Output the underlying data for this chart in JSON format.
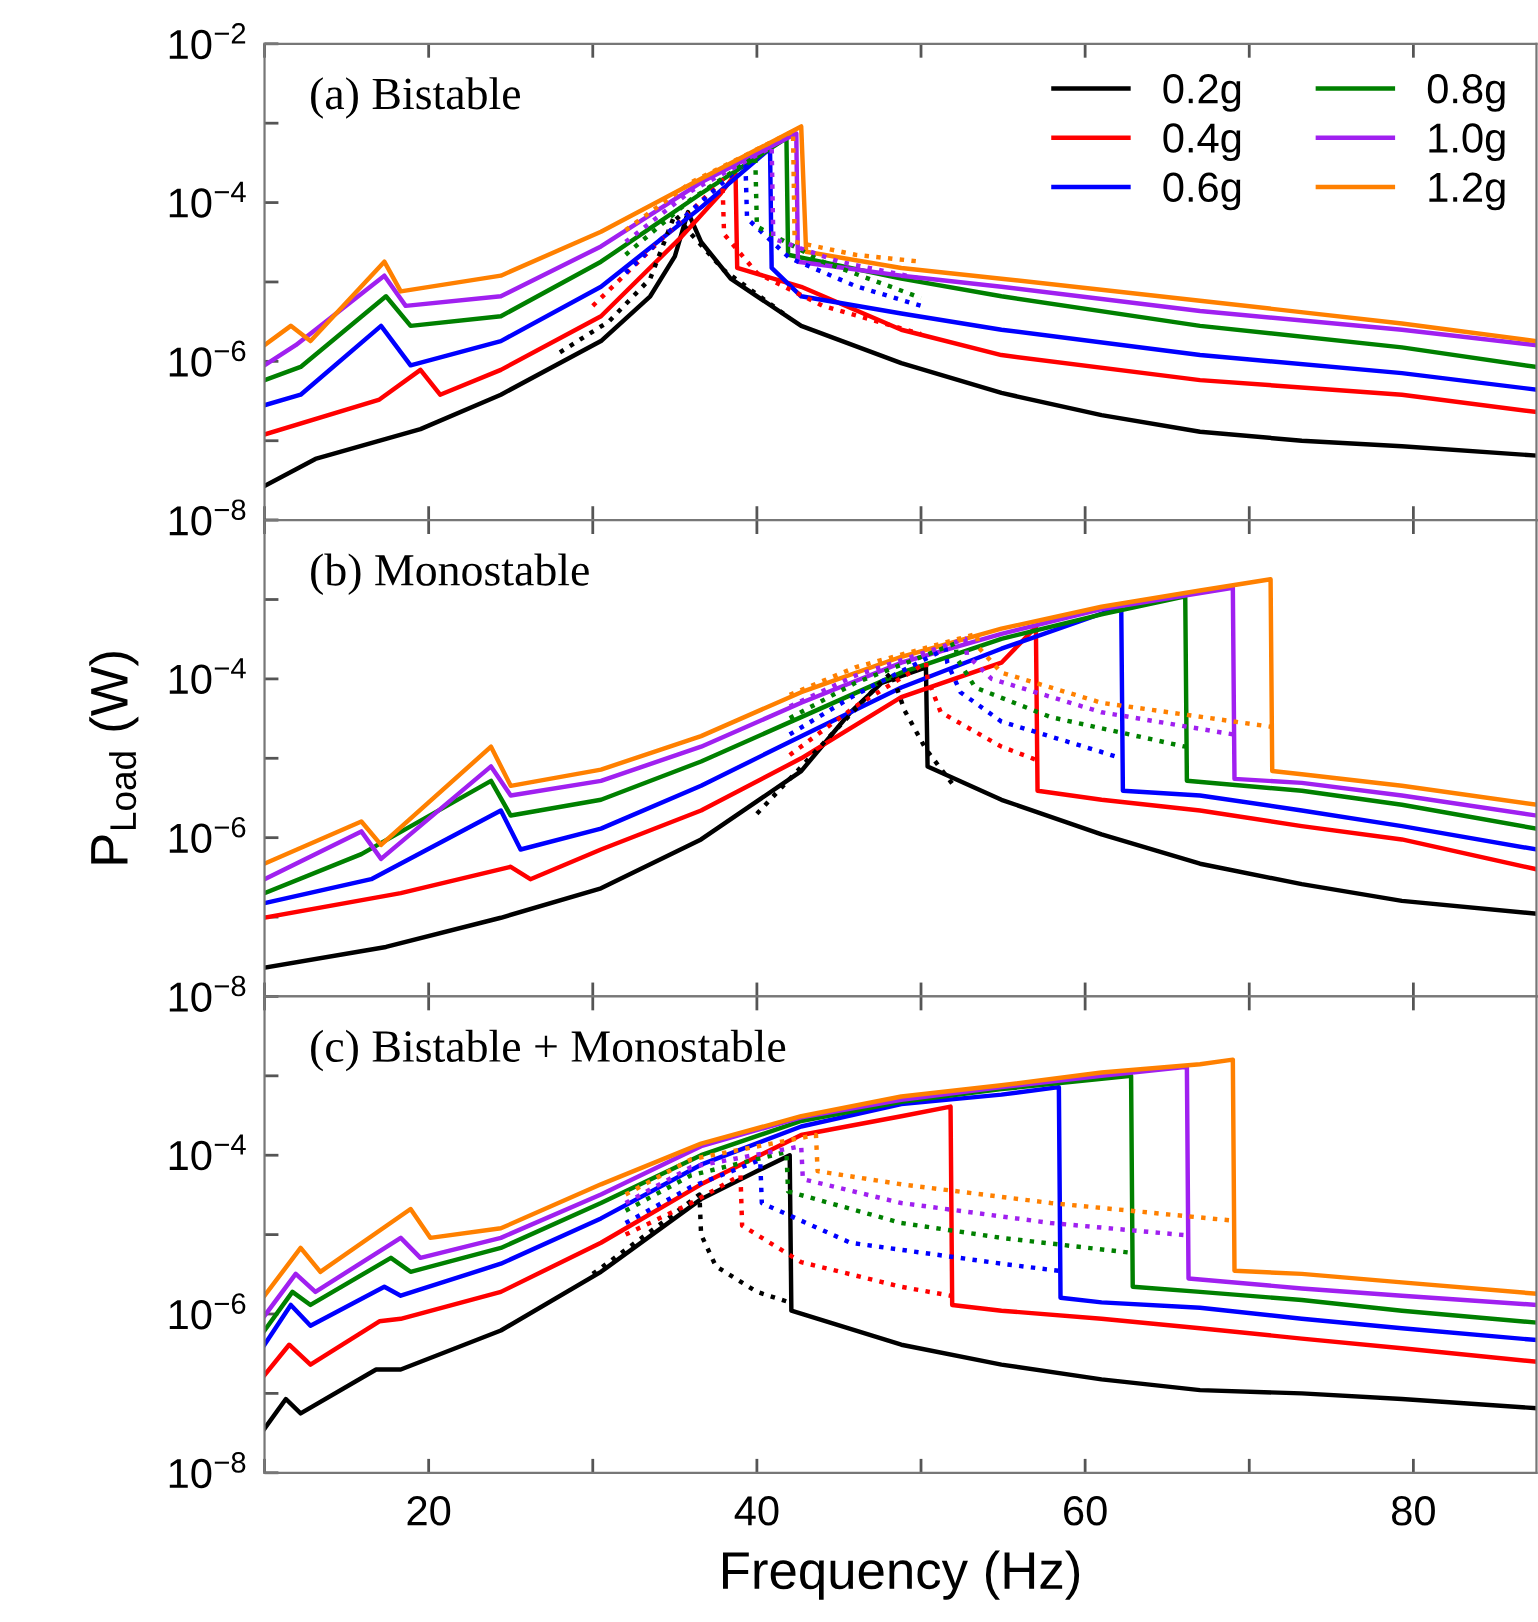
{
  "chart_data": [
    {
      "type": "line",
      "title": "(a) Bistable",
      "legend": "top right",
      "log": "y",
      "xlim": [
        10,
        87.5
      ],
      "ylim": [
        1e-08,
        0.01
      ],
      "tick_labels": "y",
      "xticks": [
        {
          "value": 10,
          "label": null
        },
        {
          "value": 20,
          "label": null
        },
        {
          "value": 30,
          "label": null
        },
        {
          "value": 40,
          "label": null
        },
        {
          "value": 50,
          "label": null
        },
        {
          "value": 60,
          "label": null
        },
        {
          "value": 70,
          "label": null
        },
        {
          "value": 80,
          "label": null
        }
      ],
      "yticks": [
        {
          "value": 1e-08,
          "label": "10$^{−8}$"
        },
        {
          "value": 1e-07,
          "label": null
        },
        {
          "value": 1e-06,
          "label": "10$^{−6}$"
        },
        {
          "value": 1e-05,
          "label": null
        },
        {
          "value": 0.0001,
          "label": "10$^{−4}$"
        },
        {
          "value": 0.001,
          "label": null
        },
        {
          "value": 0.01,
          "label": "10$^{−2}$"
        }
      ],
      "series": [
        {
          "name": "0.2g",
          "color": "#000000",
          "line_style": "solid",
          "x": [
            10,
            13.1,
            19.5,
            24.4,
            30.5,
            33.5,
            35,
            35.8,
            36.6,
            38.4,
            42.7,
            48.8,
            54.9,
            61,
            67,
            73.2,
            79.3,
            87.5
          ],
          "values": [
            2.7e-08,
            5.9e-08,
            1.4e-07,
            3.8e-07,
            1.8e-06,
            6.6e-06,
            2.1e-05,
            7.6e-05,
            3.2e-05,
            1.1e-05,
            2.8e-06,
            9.5e-07,
            4e-07,
            2.1e-07,
            1.3e-07,
            1e-07,
            8.5e-08,
            6.5e-08
          ]
        },
        {
          "name": "0.4g",
          "color": "#ff0000",
          "line_style": "solid",
          "x": [
            10,
            17,
            19.5,
            20.7,
            24.4,
            30.5,
            35.4,
            37.8,
            38.7,
            38.8,
            42.7,
            48.8,
            54.9,
            67,
            79.3,
            87.5
          ],
          "values": [
            1.2e-07,
            3.3e-07,
            7.8e-07,
            3.8e-07,
            7.8e-07,
            3.7e-06,
            3.7e-05,
            0.00013,
            0.00023,
            1.5e-05,
            8.7e-06,
            2.5e-06,
            1.2e-06,
            5.8e-07,
            3.8e-07,
            2.3e-07
          ]
        },
        {
          "name": "0.6g",
          "color": "#0000ff",
          "line_style": "solid",
          "x": [
            10,
            12.2,
            17.1,
            18.9,
            24.4,
            30.5,
            36.6,
            40.8,
            40.9,
            42.7,
            48.8,
            54.9,
            67,
            79.3,
            87.5
          ],
          "values": [
            2.8e-07,
            3.8e-07,
            2.8e-06,
            8.9e-07,
            1.8e-06,
            8.7e-06,
            8.7e-05,
            0.00048,
            1.5e-05,
            6.6e-06,
            4e-06,
            2.5e-06,
            1.2e-06,
            7.1e-07,
            4.4e-07
          ]
        },
        {
          "name": "0.8g",
          "color": "#008000",
          "line_style": "solid",
          "x": [
            10,
            12.2,
            17.4,
            18.9,
            24.4,
            30.5,
            36.6,
            41.8,
            41.9,
            48.8,
            54.9,
            67,
            79.3,
            87.5
          ],
          "values": [
            5.8e-07,
            8.5e-07,
            6.6e-06,
            2.8e-06,
            3.7e-06,
            1.8e-05,
            0.00013,
            0.00065,
            2.2e-05,
            1.1e-05,
            6.6e-06,
            2.8e-06,
            1.5e-06,
            8.5e-07
          ]
        },
        {
          "name": "1.0g",
          "color": "#a020f0",
          "line_style": "solid",
          "x": [
            10,
            11.9,
            17.3,
            18.6,
            24.4,
            30.5,
            36.6,
            42.4,
            42.5,
            48.8,
            54.9,
            67,
            79.3,
            87.5
          ],
          "values": [
            8.9e-07,
            1.6e-06,
            1.2e-05,
            5e-06,
            6.6e-06,
            2.8e-05,
            0.00018,
            0.00074,
            1.8e-05,
            1.2e-05,
            8.7e-06,
            4.3e-06,
            2.5e-06,
            1.6e-06
          ]
        },
        {
          "name": "1.2g",
          "color": "#ff8000",
          "line_style": "solid",
          "x": [
            10,
            11.6,
            12.8,
            17.3,
            18.3,
            24.4,
            30.5,
            36.6,
            42.7,
            43.0,
            48.8,
            54.9,
            67,
            79.3,
            87.5
          ],
          "values": [
            1.6e-06,
            2.8e-06,
            1.8e-06,
            1.8e-05,
            7.6e-06,
            1.2e-05,
            4.3e-05,
            0.0002,
            0.00091,
            2.4e-05,
            1.5e-05,
            1.1e-05,
            5.8e-06,
            3e-06,
            1.8e-06
          ]
        },
        {
          "color": "#000000",
          "line_style": "dotted",
          "x": [
            28,
            31,
            33.5,
            35.0,
            36,
            38,
            42
          ],
          "values": [
            1.3e-06,
            3.2e-06,
            1.1e-05,
            7.1e-05,
            4e-05,
            1.4e-05,
            3.5e-06
          ]
        },
        {
          "color": "#ff0000",
          "line_style": "dotted",
          "x": [
            30,
            35,
            37.9,
            38.0,
            40,
            44,
            50
          ],
          "values": [
            5e-06,
            5e-05,
            0.00019,
            4e-05,
            1.3e-05,
            5e-06,
            2.2e-06
          ]
        },
        {
          "color": "#0000ff",
          "line_style": "dotted",
          "x": [
            32,
            36,
            39.3,
            39.4,
            42,
            46,
            50
          ],
          "values": [
            1.3e-05,
            7.9e-05,
            0.00032,
            6.3e-05,
            2e-05,
            8.9e-06,
            5e-06
          ]
        },
        {
          "color": "#008000",
          "line_style": "dotted",
          "x": [
            32,
            36,
            39.9,
            40.0,
            44,
            50
          ],
          "values": [
            2.2e-05,
            0.00011,
            0.00038,
            5e-05,
            1.8e-05,
            6.3e-06
          ]
        },
        {
          "color": "#a020f0",
          "line_style": "dotted",
          "x": [
            32,
            36,
            40.9,
            41.0,
            45,
            50
          ],
          "values": [
            3.2e-05,
            0.00014,
            0.0005,
            3.5e-05,
            1.8e-05,
            1.1e-05
          ]
        },
        {
          "color": "#ff8000",
          "line_style": "dotted",
          "x": [
            32,
            36,
            42.2,
            42.3,
            46,
            50
          ],
          "values": [
            4.5e-05,
            0.00018,
            0.00079,
            3.2e-05,
            2.2e-05,
            1.8e-05
          ]
        }
      ]
    },
    {
      "type": "line",
      "title": "(b) Monostable",
      "ylabel": "P$_{Load}$ (W)",
      "log": "y",
      "xlim": [
        10,
        87.5
      ],
      "ylim": [
        1e-08,
        0.01
      ],
      "tick_labels": "y",
      "xticks": [
        {
          "value": 10,
          "label": null
        },
        {
          "value": 20,
          "label": null
        },
        {
          "value": 30,
          "label": null
        },
        {
          "value": 40,
          "label": null
        },
        {
          "value": 50,
          "label": null
        },
        {
          "value": 60,
          "label": null
        },
        {
          "value": 70,
          "label": null
        },
        {
          "value": 80,
          "label": null
        }
      ],
      "yticks": [
        {
          "value": 1e-08,
          "label": "10$^{−8}$"
        },
        {
          "value": 1e-07,
          "label": null
        },
        {
          "value": 1e-06,
          "label": "10$^{−6}$"
        },
        {
          "value": 1e-05,
          "label": null
        },
        {
          "value": 0.0001,
          "label": "10$^{−4}$"
        },
        {
          "value": 0.001,
          "label": null
        },
        {
          "value": 0.01,
          "label": null
        }
      ],
      "series": [
        {
          "color": "#000000",
          "line_style": "solid",
          "x": [
            10,
            17.4,
            24.4,
            30.5,
            36.6,
            42.7,
            45.7,
            47.6,
            50.3,
            50.4,
            54.9,
            61,
            67,
            73.2,
            79.3,
            87.5
          ],
          "values": [
            2.3e-08,
            4.2e-08,
            9.8e-08,
            2.3e-07,
            9.5e-07,
            6.9e-06,
            3.8e-05,
            8.9e-05,
            0.00014,
            7.9e-06,
            3e-06,
            1.1e-06,
            4.7e-07,
            2.6e-07,
            1.6e-07,
            1.1e-07
          ]
        },
        {
          "color": "#ff0000",
          "line_style": "solid",
          "x": [
            10,
            18.3,
            25,
            26.2,
            30.5,
            36.6,
            42.7,
            48.8,
            54.9,
            57,
            57.1,
            61,
            67,
            73.2,
            79.3,
            87.5
          ],
          "values": [
            9.8e-08,
            2e-07,
            4.3e-07,
            3e-07,
            7.1e-07,
            2.2e-06,
            1e-05,
            5.9e-05,
            0.00016,
            0.00045,
            3.9e-06,
            3e-06,
            2.2e-06,
            1.4e-06,
            9.5e-07,
            4e-07
          ]
        },
        {
          "color": "#0000ff",
          "line_style": "solid",
          "x": [
            10,
            16.5,
            24.4,
            25.6,
            30.5,
            36.6,
            42.7,
            48.8,
            54.9,
            62.2,
            62.3,
            67,
            73.2,
            79.3,
            87.5
          ],
          "values": [
            1.5e-07,
            3e-07,
            2.2e-06,
            7.1e-07,
            1.3e-06,
            4.5e-06,
            1.9e-05,
            7.8e-05,
            0.00024,
            0.00081,
            3.9e-06,
            3.4e-06,
            2.2e-06,
            1.4e-06,
            7.1e-07
          ]
        },
        {
          "color": "#008000",
          "line_style": "solid",
          "x": [
            10,
            15.9,
            23.8,
            25,
            30.5,
            36.6,
            42.7,
            48.8,
            54.9,
            61,
            66.1,
            66.2,
            73.2,
            79.3,
            87.5
          ],
          "values": [
            2e-07,
            6.2e-07,
            5.2e-06,
            1.9e-06,
            3e-06,
            9.1e-06,
            3.3e-05,
            0.00012,
            0.00032,
            0.00065,
            0.0011,
            5.2e-06,
            3.9e-06,
            2.6e-06,
            1.3e-06
          ]
        },
        {
          "color": "#a020f0",
          "line_style": "solid",
          "x": [
            10,
            15.9,
            17.1,
            23.8,
            25,
            30.5,
            36.6,
            42.7,
            48.8,
            54.9,
            61,
            69,
            69.1,
            73.2,
            79.3,
            87.5
          ],
          "values": [
            3e-07,
            1.2e-06,
            5.4e-07,
            7.9e-06,
            3.4e-06,
            5.2e-06,
            1.4e-05,
            5e-05,
            0.00016,
            0.00037,
            0.00076,
            0.0014,
            5.5e-06,
            4.9e-06,
            3.4e-06,
            1.9e-06
          ]
        },
        {
          "color": "#ff8000",
          "line_style": "solid",
          "x": [
            10,
            15.9,
            17.1,
            23.8,
            25,
            30.5,
            36.6,
            42.7,
            48.8,
            54.9,
            61,
            67,
            71.3,
            71.4,
            73.2,
            79.3,
            87.5
          ],
          "values": [
            4.7e-07,
            1.6e-06,
            8.1e-07,
            1.4e-05,
            4.5e-06,
            7.2e-06,
            1.9e-05,
            6.8e-05,
            0.00019,
            0.00043,
            0.00081,
            0.0013,
            0.0018,
            6.9e-06,
            6.3e-06,
            4.5e-06,
            2.6e-06
          ]
        },
        {
          "color": "#000000",
          "line_style": "dotted",
          "x": [
            40,
            45,
            47.5,
            48.2,
            49,
            50.3,
            52
          ],
          "values": [
            2e-06,
            2.5e-05,
            8.9e-05,
            0.00012,
            4e-05,
            1.3e-05,
            4.5e-06
          ]
        },
        {
          "color": "#ff0000",
          "line_style": "dotted",
          "x": [
            42,
            46,
            50.3,
            50.4,
            51.2,
            54.9,
            57.3
          ],
          "values": [
            1.1e-05,
            4.5e-05,
            0.00016,
            0.0001,
            3.8e-05,
            1.4e-05,
            9.1e-06
          ]
        },
        {
          "color": "#0000ff",
          "line_style": "dotted",
          "x": [
            42,
            46,
            51.5,
            51.6,
            52.4,
            54.9,
            61,
            62.2
          ],
          "values": [
            2e-05,
            6.3e-05,
            0.00024,
            0.00016,
            6.8e-05,
            2.9e-05,
            1.2e-05,
            1e-05
          ]
        },
        {
          "color": "#008000",
          "line_style": "dotted",
          "x": [
            42,
            46,
            52.1,
            52.2,
            53.3,
            57.9,
            66.1
          ],
          "values": [
            3.2e-05,
            8.9e-05,
            0.00028,
            0.00018,
            7.8e-05,
            3.3e-05,
            1.4e-05
          ]
        },
        {
          "color": "#a020f0",
          "line_style": "dotted",
          "x": [
            42,
            46,
            52.7,
            52.8,
            54.3,
            61,
            69
          ],
          "values": [
            4.5e-05,
            0.00011,
            0.00032,
            0.0002,
            0.0001,
            3.8e-05,
            2e-05
          ]
        },
        {
          "color": "#ff8000",
          "line_style": "dotted",
          "x": [
            42,
            46,
            53.4,
            53.5,
            54.9,
            61,
            71.3
          ],
          "values": [
            6.3e-05,
            0.00014,
            0.00037,
            0.00025,
            0.00012,
            5e-05,
            2.5e-05
          ]
        }
      ]
    },
    {
      "type": "line",
      "title": "(c) Bistable + Monostable",
      "xlabel": "Frequency (Hz)",
      "log": "y",
      "xlim": [
        10,
        87.5
      ],
      "ylim": [
        1e-08,
        0.01
      ],
      "xticks": [
        {
          "value": 10,
          "label": null
        },
        20,
        {
          "value": 30,
          "label": null
        },
        40,
        {
          "value": 50,
          "label": null
        },
        60,
        {
          "value": 70,
          "label": null
        },
        80
      ],
      "yticks": [
        {
          "value": 1e-08,
          "label": "10$^{−8}$"
        },
        {
          "value": 1e-07,
          "label": null
        },
        {
          "value": 1e-06,
          "label": "10$^{−6}$"
        },
        {
          "value": 1e-05,
          "label": null
        },
        {
          "value": 0.0001,
          "label": "10$^{−4}$"
        },
        {
          "value": 0.001,
          "label": null
        },
        {
          "value": 0.01,
          "label": null
        }
      ],
      "series": [
        {
          "color": "#000000",
          "line_style": "solid",
          "x": [
            10,
            11.3,
            12.2,
            16.8,
            18.3,
            24.4,
            30.5,
            36.6,
            40.2,
            42,
            42.1,
            48.8,
            54.9,
            61,
            67,
            73.2,
            79.3,
            87.5
          ],
          "values": [
            3.6e-08,
            8.5e-08,
            5.6e-08,
            2e-07,
            2e-07,
            6.2e-07,
            3.4e-06,
            2.8e-05,
            6.6e-05,
            0.0001,
            1.1e-06,
            4.1e-07,
            2.3e-07,
            1.5e-07,
            1.1e-07,
            1e-07,
            8.5e-08,
            6.5e-08
          ]
        },
        {
          "color": "#ff0000",
          "line_style": "solid",
          "x": [
            10,
            11.5,
            12.8,
            17,
            18.3,
            24.4,
            30.5,
            36.6,
            42.7,
            48.8,
            51.8,
            51.9,
            54.9,
            61,
            67,
            73.2,
            79.3,
            87.5
          ],
          "values": [
            1.7e-07,
            4.1e-07,
            2.3e-07,
            8.1e-07,
            8.7e-07,
            1.9e-06,
            7.9e-06,
            4.3e-05,
            0.00018,
            0.00031,
            0.00041,
            1.3e-06,
            1.1e-06,
            8.7e-07,
            6.6e-07,
            4.9e-07,
            3.7e-07,
            2.5e-07
          ]
        },
        {
          "color": "#0000ff",
          "line_style": "solid",
          "x": [
            10,
            11.6,
            12.8,
            17.3,
            18.3,
            24.4,
            30.5,
            36.6,
            42.7,
            48.8,
            54.9,
            58.4,
            58.5,
            61,
            67,
            73.2,
            79.3,
            87.5
          ],
          "values": [
            4.1e-07,
            1.3e-06,
            7.1e-07,
            2.2e-06,
            1.7e-06,
            4.3e-06,
            1.6e-05,
            7.6e-05,
            0.00023,
            0.00044,
            0.00058,
            0.00072,
            1.6e-06,
            1.4e-06,
            1.2e-06,
            8.7e-07,
            6.6e-07,
            4.7e-07
          ]
        },
        {
          "color": "#008000",
          "line_style": "solid",
          "x": [
            10,
            11.7,
            12.8,
            17.7,
            18.9,
            24.4,
            30.5,
            36.6,
            42.7,
            48.8,
            54.9,
            62.8,
            62.9,
            67,
            73.2,
            79.3,
            87.5
          ],
          "values": [
            6.2e-07,
            1.9e-06,
            1.3e-06,
            5.1e-06,
            3.4e-06,
            6.8e-06,
            2.5e-05,
            0.0001,
            0.00027,
            0.00047,
            0.00068,
            0.001,
            2.2e-06,
            1.9e-06,
            1.5e-06,
            1.1e-06,
            7.8e-07
          ]
        },
        {
          "color": "#a020f0",
          "line_style": "solid",
          "x": [
            10,
            11.9,
            13.1,
            18.3,
            19.5,
            24.4,
            30.5,
            36.6,
            42.7,
            48.8,
            54.9,
            61,
            66.2,
            66.3,
            73.2,
            79.3,
            87.5
          ],
          "values": [
            9.5e-07,
            3.2e-06,
            1.9e-06,
            9.1e-06,
            5.1e-06,
            9.1e-06,
            3.2e-05,
            0.00013,
            0.0003,
            0.0005,
            0.00072,
            0.001,
            0.0013,
            2.8e-06,
            2.1e-06,
            1.7e-06,
            1.3e-06
          ]
        },
        {
          "color": "#ff8000",
          "line_style": "solid",
          "x": [
            10,
            12.2,
            13.4,
            18.9,
            20.1,
            24.4,
            30.5,
            36.6,
            42.7,
            48.8,
            54.9,
            61,
            67,
            69,
            69.1,
            73.2,
            79.3,
            87.5
          ],
          "values": [
            1.7e-06,
            6.8e-06,
            3.4e-06,
            2.1e-05,
            9.1e-06,
            1.2e-05,
            4.3e-05,
            0.00014,
            0.00031,
            0.00055,
            0.00076,
            0.0011,
            0.0014,
            0.0016,
            3.5e-06,
            3.2e-06,
            2.5e-06,
            1.8e-06
          ]
        },
        {
          "color": "#000000",
          "line_style": "dotted",
          "x": [
            30,
            34,
            36.5,
            36.6,
            37.5,
            40,
            42
          ],
          "values": [
            3.2e-06,
            1.3e-05,
            3.2e-05,
            1e-05,
            4e-06,
            1.9e-06,
            1.4e-06
          ]
        },
        {
          "color": "#ff0000",
          "line_style": "dotted",
          "x": [
            32,
            36,
            39,
            39.1,
            42.7,
            48.8,
            51.8
          ],
          "values": [
            1e-05,
            2.5e-05,
            5.6e-05,
            1.3e-05,
            4.5e-06,
            2.2e-06,
            1.7e-06
          ]
        },
        {
          "color": "#0000ff",
          "line_style": "dotted",
          "x": [
            32,
            36,
            40.2,
            40.3,
            45.7,
            54.9,
            58.4
          ],
          "values": [
            1.4e-05,
            4e-05,
            8.7e-05,
            2.5e-05,
            7.9e-06,
            4.3e-06,
            3.5e-06
          ]
        },
        {
          "color": "#008000",
          "line_style": "dotted",
          "x": [
            32,
            36,
            41.8,
            41.9,
            48.8,
            54.9,
            62.8
          ],
          "values": [
            2e-05,
            5.6e-05,
            0.00011,
            3.5e-05,
            1.4e-05,
            9.1e-06,
            5.9e-06
          ]
        },
        {
          "color": "#a020f0",
          "line_style": "dotted",
          "x": [
            32,
            36,
            42.7,
            42.8,
            48.8,
            57.9,
            66.2
          ],
          "values": [
            2.5e-05,
            7.1e-05,
            0.00013,
            5e-05,
            2.5e-05,
            1.4e-05,
            9.8e-06
          ]
        },
        {
          "color": "#ff8000",
          "line_style": "dotted",
          "x": [
            32,
            36,
            43.6,
            43.7,
            48.8,
            57.9,
            69
          ],
          "values": [
            3.2e-05,
            8.9e-05,
            0.00018,
            6.3e-05,
            4.3e-05,
            2.5e-05,
            1.5e-05
          ]
        }
      ]
    }
  ]
}
